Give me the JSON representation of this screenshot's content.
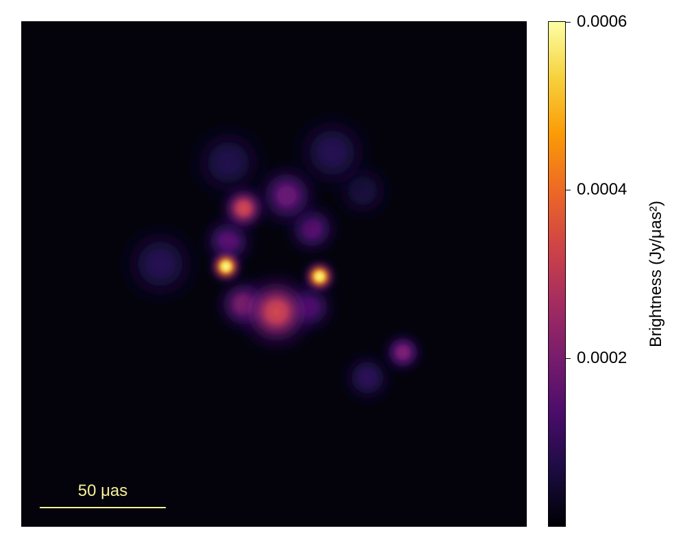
{
  "chart_data": {
    "type": "heatmap",
    "title": "",
    "xlabel": "",
    "ylabel": "",
    "colormap": "inferno",
    "background_color": "#04030c",
    "scale_bar": {
      "label": "50 μas",
      "length_uas": 50,
      "color": "#f7f19a"
    },
    "field_of_view_uas": 200,
    "colorbar": {
      "label": "Brightness (Jy/μas²)",
      "range": [
        0,
        0.0006
      ],
      "ticks": [
        0.0002,
        0.0004,
        0.0006
      ],
      "tick_labels": [
        "0.0002",
        "0.0004",
        "0.0006"
      ],
      "stops": [
        "#000004",
        "#1b0c41",
        "#4a0c6b",
        "#781c6d",
        "#a52c60",
        "#cf4446",
        "#ed6925",
        "#fb9b06",
        "#f7d13d",
        "#fcffa4"
      ]
    },
    "components": [
      {
        "name": "ring-top",
        "x_uas": 5,
        "y_uas": 31,
        "sigma_uas": 7,
        "peak": 0.00018
      },
      {
        "name": "ring-top-left",
        "x_uas": -12,
        "y_uas": 26,
        "sigma_uas": 5,
        "peak": 0.00034
      },
      {
        "name": "ring-left-hotspot",
        "x_uas": -19,
        "y_uas": 3,
        "sigma_uas": 3.5,
        "peak": 0.0006
      },
      {
        "name": "ring-right-hotspot",
        "x_uas": 18,
        "y_uas": -1,
        "sigma_uas": 3.5,
        "peak": 0.00059
      },
      {
        "name": "ring-bottom",
        "x_uas": 1,
        "y_uas": -15,
        "sigma_uas": 8,
        "peak": 0.00034
      },
      {
        "name": "ring-lower-left",
        "x_uas": -12,
        "y_uas": -12,
        "sigma_uas": 6,
        "peak": 0.00024
      },
      {
        "name": "ring-upper-right",
        "x_uas": 15,
        "y_uas": 18,
        "sigma_uas": 6,
        "peak": 0.00016
      },
      {
        "name": "ring-lower-right",
        "x_uas": 14,
        "y_uas": -13,
        "sigma_uas": 6,
        "peak": 0.00016
      },
      {
        "name": "ring-left-upper",
        "x_uas": -18,
        "y_uas": 13,
        "sigma_uas": 6,
        "peak": 0.00016
      },
      {
        "name": "left-arm",
        "x_uas": -45,
        "y_uas": 4,
        "sigma_uas": 9,
        "peak": 8e-05
      },
      {
        "name": "upper-left-arm",
        "x_uas": -18,
        "y_uas": 44,
        "sigma_uas": 9,
        "peak": 7e-05
      },
      {
        "name": "upper-right-arm",
        "x_uas": 23,
        "y_uas": 48,
        "sigma_uas": 9,
        "peak": 8e-05
      },
      {
        "name": "right-upper-arm",
        "x_uas": 35,
        "y_uas": 33,
        "sigma_uas": 7,
        "peak": 6e-05
      },
      {
        "name": "lower-right-blob",
        "x_uas": 51,
        "y_uas": -31,
        "sigma_uas": 4.5,
        "peak": 0.00021
      },
      {
        "name": "lower-right-tail",
        "x_uas": 37,
        "y_uas": -41,
        "sigma_uas": 6,
        "peak": 9e-05
      }
    ]
  }
}
